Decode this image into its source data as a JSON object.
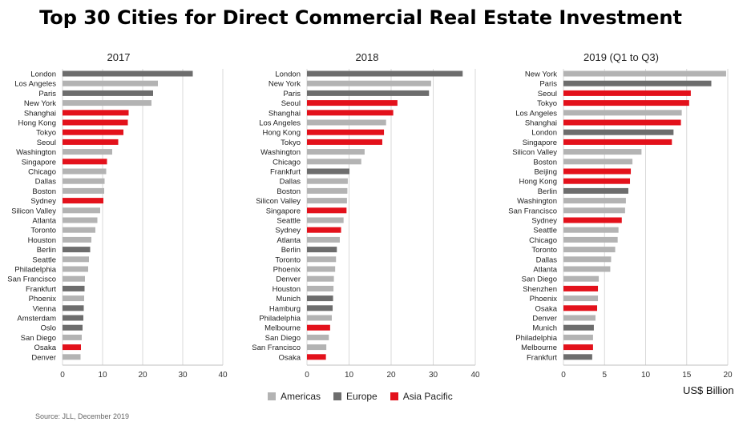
{
  "title": "Top 30 Cities for Direct Commercial Real Estate Investment",
  "legend": [
    {
      "name": "Americas",
      "color": "#b3b3b3"
    },
    {
      "name": "Europe",
      "color": "#6d6d6d"
    },
    {
      "name": "Asia Pacific",
      "color": "#e3111b"
    }
  ],
  "unit_label": "US$ Billion",
  "source": "Source: JLL, December 2019",
  "chart_data": [
    {
      "type": "bar",
      "title": "2017",
      "xlim": [
        0,
        40
      ],
      "ticks": [
        0,
        10,
        20,
        30,
        40
      ],
      "categories": [
        "London",
        "Los Angeles",
        "Paris",
        "New York",
        "Shanghai",
        "Hong Kong",
        "Tokyo",
        "Seoul",
        "Washington",
        "Singapore",
        "Chicago",
        "Dallas",
        "Boston",
        "Sydney",
        "Silicon Valley",
        "Atlanta",
        "Toronto",
        "Houston",
        "Berlin",
        "Seattle",
        "Philadelphia",
        "San Francisco",
        "Frankfurt",
        "Phoenix",
        "Vienna",
        "Amsterdam",
        "Oslo",
        "San Diego",
        "Osaka",
        "Denver"
      ],
      "values": [
        32.5,
        23.8,
        22.6,
        22.2,
        16.5,
        16.3,
        15.2,
        13.9,
        12.4,
        11.1,
        10.9,
        10.5,
        10.4,
        10.2,
        9.4,
        8.7,
        8.2,
        7.2,
        6.9,
        6.6,
        6.4,
        5.6,
        5.5,
        5.4,
        5.3,
        5.2,
        5.0,
        4.8,
        4.6,
        4.5
      ],
      "regions": [
        "Europe",
        "Americas",
        "Europe",
        "Americas",
        "Asia Pacific",
        "Asia Pacific",
        "Asia Pacific",
        "Asia Pacific",
        "Americas",
        "Asia Pacific",
        "Americas",
        "Americas",
        "Americas",
        "Asia Pacific",
        "Americas",
        "Americas",
        "Americas",
        "Americas",
        "Europe",
        "Americas",
        "Americas",
        "Americas",
        "Europe",
        "Americas",
        "Europe",
        "Europe",
        "Europe",
        "Americas",
        "Asia Pacific",
        "Americas"
      ]
    },
    {
      "type": "bar",
      "title": "2018",
      "xlim": [
        0,
        40
      ],
      "ticks": [
        0,
        10,
        20,
        30,
        40
      ],
      "categories": [
        "London",
        "New York",
        "Paris",
        "Seoul",
        "Shanghai",
        "Los Angeles",
        "Hong Kong",
        "Tokyo",
        "Washington",
        "Chicago",
        "Frankfurt",
        "Dallas",
        "Boston",
        "Silicon Valley",
        "Singapore",
        "Seattle",
        "Sydney",
        "Atlanta",
        "Berlin",
        "Toronto",
        "Phoenix",
        "Denver",
        "Houston",
        "Munich",
        "Hamburg",
        "Philadelphia",
        "Melbourne",
        "San Diego",
        "San Francisco",
        "Osaka"
      ],
      "values": [
        37.0,
        29.5,
        29.0,
        21.5,
        20.5,
        18.8,
        18.3,
        17.9,
        13.7,
        12.9,
        10.1,
        9.7,
        9.6,
        9.5,
        9.4,
        8.7,
        8.1,
        7.8,
        7.1,
        6.9,
        6.7,
        6.4,
        6.3,
        6.2,
        6.1,
        5.9,
        5.5,
        5.2,
        4.6,
        4.5
      ],
      "regions": [
        "Europe",
        "Americas",
        "Europe",
        "Asia Pacific",
        "Asia Pacific",
        "Americas",
        "Asia Pacific",
        "Asia Pacific",
        "Americas",
        "Americas",
        "Europe",
        "Americas",
        "Americas",
        "Americas",
        "Asia Pacific",
        "Americas",
        "Asia Pacific",
        "Americas",
        "Europe",
        "Americas",
        "Americas",
        "Americas",
        "Americas",
        "Europe",
        "Europe",
        "Americas",
        "Asia Pacific",
        "Americas",
        "Americas",
        "Asia Pacific"
      ]
    },
    {
      "type": "bar",
      "title": "2019 (Q1 to Q3)",
      "xlim": [
        0,
        20
      ],
      "ticks": [
        0,
        5,
        10,
        15,
        20
      ],
      "categories": [
        "New York",
        "Paris",
        "Seoul",
        "Tokyo",
        "Los Angeles",
        "Shanghai",
        "London",
        "Singapore",
        "Silicon Valley",
        "Boston",
        "Beijing",
        "Hong Kong",
        "Berlin",
        "Washington",
        "San Francisco",
        "Sydney",
        "Seattle",
        "Chicago",
        "Toronto",
        "Dallas",
        "Atlanta",
        "San Diego",
        "Shenzhen",
        "Phoenix",
        "Osaka",
        "Denver",
        "Munich",
        "Philadelphia",
        "Melbourne",
        "Frankfurt"
      ],
      "values": [
        19.8,
        18.0,
        15.5,
        15.3,
        14.4,
        14.3,
        13.4,
        13.2,
        9.5,
        8.4,
        8.2,
        8.1,
        7.9,
        7.6,
        7.5,
        7.1,
        6.7,
        6.6,
        6.3,
        5.8,
        5.7,
        4.3,
        4.2,
        4.2,
        4.1,
        3.9,
        3.7,
        3.6,
        3.6,
        3.5
      ],
      "regions": [
        "Americas",
        "Europe",
        "Asia Pacific",
        "Asia Pacific",
        "Americas",
        "Asia Pacific",
        "Europe",
        "Asia Pacific",
        "Americas",
        "Americas",
        "Asia Pacific",
        "Asia Pacific",
        "Europe",
        "Americas",
        "Americas",
        "Asia Pacific",
        "Americas",
        "Americas",
        "Americas",
        "Americas",
        "Americas",
        "Americas",
        "Asia Pacific",
        "Americas",
        "Asia Pacific",
        "Americas",
        "Europe",
        "Americas",
        "Asia Pacific",
        "Europe"
      ]
    }
  ]
}
